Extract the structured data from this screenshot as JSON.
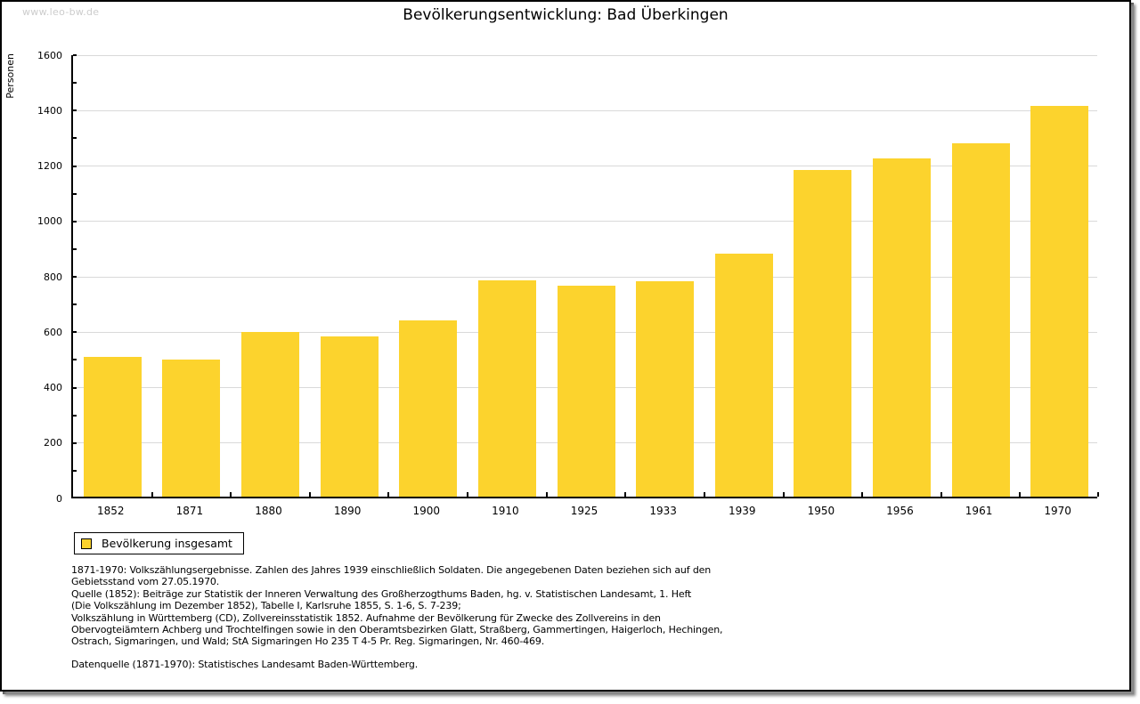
{
  "watermark": "www.leo-bw.de",
  "title": "Bevölkerungsentwicklung: Bad Überkingen",
  "chart_data": {
    "type": "bar",
    "title": "Bevölkerungsentwicklung: Bad Überkingen",
    "xlabel": "",
    "ylabel": "Personen",
    "categories": [
      "1852",
      "1871",
      "1880",
      "1890",
      "1900",
      "1910",
      "1925",
      "1933",
      "1939",
      "1950",
      "1956",
      "1961",
      "1970"
    ],
    "values": [
      503,
      495,
      596,
      578,
      637,
      781,
      760,
      778,
      877,
      1178,
      1221,
      1277,
      1412
    ],
    "ylim": [
      0,
      1600
    ],
    "ytick_major": 200,
    "ytick_minor": 100,
    "grid": "horizontal-major-only",
    "legend_position": "bottom-left",
    "series_name": "Bevölkerung insgesamt"
  },
  "legend": {
    "label": "Bevölkerung insgesamt"
  },
  "footnotes": {
    "lines": [
      "1871-1970: Volkszählungsergebnisse. Zahlen des Jahres 1939 einschließlich Soldaten. Die angegebenen Daten beziehen sich auf den",
      "Gebietsstand vom 27.05.1970.",
      "Quelle (1852): Beiträge zur Statistik der Inneren Verwaltung des Großherzogthums Baden, hg. v. Statistischen Landesamt, 1. Heft",
      "(Die Volkszählung im Dezember 1852), Tabelle I, Karlsruhe 1855, S. 1-6, S. 7-239;",
      "Volkszählung in Württemberg (CD), Zollvereinsstatistik 1852. Aufnahme der Bevölkerung für Zwecke des Zollvereins in den",
      "Obervogteiämtern Achberg und Trochtelfingen sowie in den Oberamtsbezirken Glatt, Straßberg, Gammertingen, Haigerloch, Hechingen,",
      "Ostrach, Sigmaringen, und Wald; StA Sigmaringen Ho 235 T 4-5 Pr. Reg. Sigmaringen, Nr. 460-469."
    ],
    "datenquelle": "Datenquelle (1871-1970): Statistisches Landesamt Baden-Württemberg."
  },
  "colors": {
    "bar": "#fcd32d",
    "grid": "#d9d9d9",
    "axis": "#000000",
    "watermark": "#cccccc"
  }
}
